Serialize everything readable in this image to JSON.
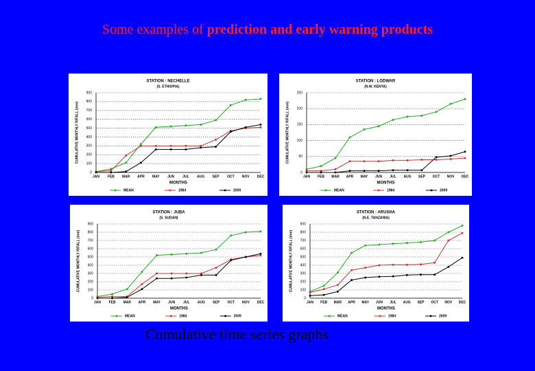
{
  "title_parts": [
    "Some examples of ",
    "prediction and early warning products"
  ],
  "caption": "Cumulative time series graphs",
  "chart_data": [
    {
      "type": "line",
      "title": "STATION : NECHELLE",
      "subtitle": "(S. ETHIOPIA)",
      "ylabel": "CUMULATIVE MONTHLY R/FALL (mm)",
      "xlabel": "MONTHS",
      "categories": [
        "JAN",
        "FEB",
        "MAR",
        "APR",
        "MAY",
        "JUN",
        "JUL",
        "AUG",
        "SEP",
        "OCT",
        "NOV",
        "DEC"
      ],
      "ylim": [
        0,
        900
      ],
      "yticks": [
        0,
        100,
        200,
        300,
        400,
        500,
        600,
        700,
        800,
        900
      ],
      "grid": true,
      "series": [
        {
          "name": "MEAN",
          "color": "#22aa22",
          "values": [
            10,
            40,
            110,
            320,
            510,
            520,
            530,
            540,
            590,
            760,
            820,
            830
          ]
        },
        {
          "name": "1984",
          "color": "#cc3333",
          "values": [
            10,
            20,
            190,
            300,
            300,
            300,
            300,
            300,
            370,
            470,
            500,
            510
          ]
        },
        {
          "name": "2009",
          "color": "#000000",
          "values": [
            0,
            0,
            10,
            110,
            260,
            260,
            260,
            280,
            290,
            460,
            510,
            540
          ]
        }
      ]
    },
    {
      "type": "line",
      "title": "STATION : LODWAR",
      "subtitle": "(N.W. KENYA)",
      "ylabel": "CUMULATIVE MONTHLY R/FALL (mm)",
      "xlabel": "MONTHS",
      "categories": [
        "JAN",
        "FEB",
        "MAR",
        "APR",
        "MAY",
        "JUN",
        "JUL",
        "AUG",
        "SEP",
        "OCT",
        "NOV",
        "DEC"
      ],
      "ylim": [
        0,
        250
      ],
      "yticks": [
        0,
        50,
        100,
        150,
        200,
        250
      ],
      "grid": true,
      "series": [
        {
          "name": "MEAN",
          "color": "#22aa22",
          "values": [
            10,
            20,
            45,
            110,
            135,
            145,
            165,
            175,
            178,
            190,
            215,
            230
          ]
        },
        {
          "name": "1984",
          "color": "#cc3333",
          "values": [
            5,
            5,
            10,
            35,
            35,
            35,
            38,
            38,
            40,
            40,
            42,
            45
          ]
        },
        {
          "name": "2009",
          "color": "#000000",
          "values": [
            0,
            0,
            0,
            5,
            5,
            5,
            7,
            7,
            7,
            48,
            52,
            65
          ]
        }
      ]
    },
    {
      "type": "line",
      "title": "STATION : JUBA",
      "subtitle": "(S. SUDAN)",
      "ylabel": "CUMULATIVE MONTHLY R/FALL (mm)",
      "xlabel": "MONTHS",
      "categories": [
        "JAN",
        "FEB",
        "MAR",
        "APR",
        "MAY",
        "JUN",
        "JUL",
        "AUG",
        "SEP",
        "OCT",
        "NOV",
        "DEC"
      ],
      "ylim": [
        0,
        900
      ],
      "yticks": [
        0,
        100,
        200,
        300,
        400,
        500,
        600,
        700,
        800,
        900
      ],
      "grid": true,
      "series": [
        {
          "name": "MEAN",
          "color": "#22aa22",
          "values": [
            20,
            50,
            110,
            320,
            520,
            530,
            540,
            550,
            590,
            760,
            800,
            810
          ]
        },
        {
          "name": "1984",
          "color": "#cc3333",
          "values": [
            10,
            20,
            20,
            170,
            300,
            300,
            300,
            300,
            370,
            470,
            500,
            520
          ]
        },
        {
          "name": "2009",
          "color": "#000000",
          "values": [
            0,
            0,
            10,
            110,
            240,
            240,
            250,
            280,
            280,
            460,
            500,
            540
          ]
        }
      ]
    },
    {
      "type": "line",
      "title": "STATION : ARUSHA",
      "subtitle": "(N.E. TANZANIA)",
      "ylabel": "CUMULATIVE MONTHLY R/FALL (mm)",
      "xlabel": "MONTHS",
      "categories": [
        "JAN",
        "FEB",
        "MAR",
        "APR",
        "MAY",
        "JUN",
        "JUL",
        "AUG",
        "SEP",
        "OCT",
        "NOV",
        "DEC"
      ],
      "ylim": [
        0,
        900
      ],
      "yticks": [
        0,
        100,
        200,
        300,
        400,
        500,
        600,
        700,
        800,
        900
      ],
      "grid": true,
      "series": [
        {
          "name": "MEAN",
          "color": "#22aa22",
          "values": [
            80,
            150,
            310,
            550,
            640,
            650,
            660,
            670,
            680,
            700,
            800,
            880
          ]
        },
        {
          "name": "1984",
          "color": "#cc3333",
          "values": [
            70,
            110,
            160,
            340,
            370,
            400,
            405,
            405,
            410,
            430,
            700,
            790
          ]
        },
        {
          "name": "2009",
          "color": "#000000",
          "values": [
            30,
            40,
            80,
            220,
            250,
            260,
            265,
            280,
            285,
            285,
            380,
            490
          ]
        }
      ]
    }
  ]
}
